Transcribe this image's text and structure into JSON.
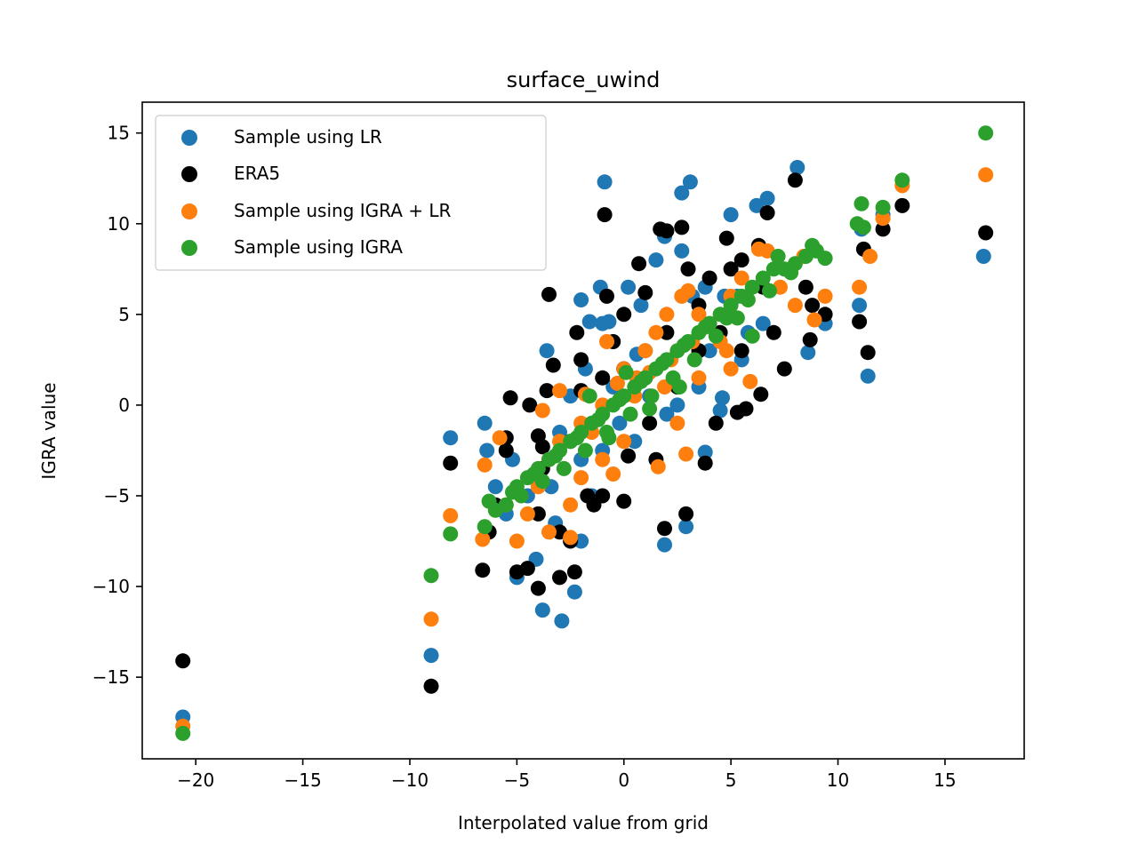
{
  "chart_data": {
    "type": "scatter",
    "title": "surface_uwind",
    "xlabel": "Interpolated value from grid",
    "ylabel": "IGRA value",
    "xlim": [
      -22.5,
      18.7
    ],
    "ylim": [
      -19.5,
      16.7
    ],
    "xticks": [
      -20,
      -15,
      -10,
      -5,
      0,
      5,
      10,
      15
    ],
    "yticks": [
      -15,
      -10,
      -5,
      0,
      5,
      10,
      15
    ],
    "xtick_labels": [
      "−20",
      "−15",
      "−10",
      "−5",
      "0",
      "5",
      "10",
      "15"
    ],
    "ytick_labels": [
      "−15",
      "−10",
      "−5",
      "0",
      "5",
      "10",
      "15"
    ],
    "legend_position": "upper-left",
    "series": [
      {
        "name": "Sample using LR",
        "color": "#1f77b4",
        "points": [
          [
            -20.6,
            -17.2
          ],
          [
            -9.0,
            -13.8
          ],
          [
            -8.1,
            -1.8
          ],
          [
            -6.5,
            -1.0
          ],
          [
            -6.4,
            -2.5
          ],
          [
            -5.0,
            -9.5
          ],
          [
            -4.1,
            -8.5
          ],
          [
            -3.8,
            -11.3
          ],
          [
            -2.9,
            -11.9
          ],
          [
            -2.3,
            -10.3
          ],
          [
            -3.6,
            3.0
          ],
          [
            -3.4,
            -4.5
          ],
          [
            -2.0,
            -7.5
          ],
          [
            -1.5,
            -5.0
          ],
          [
            -1.0,
            -2.5
          ],
          [
            -3.0,
            -1.5
          ],
          [
            -2.5,
            0.5
          ],
          [
            -1.8,
            2.0
          ],
          [
            -1.0,
            4.5
          ],
          [
            -0.9,
            12.3
          ],
          [
            -1.1,
            6.5
          ],
          [
            0.2,
            6.5
          ],
          [
            0.8,
            5.5
          ],
          [
            1.5,
            8.0
          ],
          [
            1.9,
            9.3
          ],
          [
            2.7,
            8.5
          ],
          [
            2.7,
            11.7
          ],
          [
            3.1,
            12.3
          ],
          [
            3.2,
            6.0
          ],
          [
            3.8,
            6.5
          ],
          [
            4.7,
            6.0
          ],
          [
            5.0,
            10.5
          ],
          [
            5.3,
            6.0
          ],
          [
            6.2,
            11.0
          ],
          [
            6.7,
            11.4
          ],
          [
            8.1,
            13.1
          ],
          [
            8.6,
            2.9
          ],
          [
            9.4,
            4.5
          ],
          [
            11.0,
            5.5
          ],
          [
            11.1,
            9.7
          ],
          [
            11.4,
            1.6
          ],
          [
            12.1,
            10.5
          ],
          [
            16.8,
            8.2
          ],
          [
            4.5,
            -0.3
          ],
          [
            3.8,
            -2.6
          ],
          [
            1.9,
            -7.7
          ],
          [
            2.9,
            -6.7
          ],
          [
            2.0,
            -0.5
          ],
          [
            0.5,
            -2.0
          ],
          [
            -0.5,
            1.0
          ],
          [
            1.0,
            3.0
          ],
          [
            0.0,
            2.0
          ],
          [
            -2.0,
            -3.0
          ],
          [
            -4.5,
            -5.0
          ],
          [
            -5.5,
            -6.0
          ],
          [
            2.5,
            0.0
          ],
          [
            3.5,
            1.0
          ],
          [
            4.0,
            3.0
          ],
          [
            5.8,
            4.0
          ],
          [
            6.5,
            4.5
          ],
          [
            5.5,
            2.5
          ],
          [
            -0.2,
            -1.0
          ],
          [
            1.2,
            0.5
          ],
          [
            -3.2,
            -6.5
          ],
          [
            -2.0,
            5.8
          ],
          [
            -1.6,
            4.6
          ],
          [
            -0.7,
            4.6
          ],
          [
            0.6,
            2.8
          ],
          [
            4.6,
            0.4
          ],
          [
            -6.0,
            -4.5
          ],
          [
            -5.2,
            -3.0
          ]
        ]
      },
      {
        "name": "ERA5",
        "color": "#000000",
        "points": [
          [
            -20.6,
            -14.1
          ],
          [
            -9.0,
            -15.5
          ],
          [
            -8.1,
            -3.2
          ],
          [
            -6.6,
            -9.1
          ],
          [
            -6.3,
            -7.0
          ],
          [
            -5.0,
            -9.2
          ],
          [
            -4.5,
            -9.0
          ],
          [
            -4.0,
            -10.1
          ],
          [
            -3.0,
            -9.5
          ],
          [
            -2.3,
            -9.2
          ],
          [
            -3.5,
            6.1
          ],
          [
            -3.3,
            2.2
          ],
          [
            -2.2,
            4.0
          ],
          [
            -2.0,
            2.5
          ],
          [
            -0.9,
            10.5
          ],
          [
            -0.8,
            6.0
          ],
          [
            0.0,
            5.0
          ],
          [
            0.7,
            7.8
          ],
          [
            1.0,
            6.2
          ],
          [
            1.7,
            9.7
          ],
          [
            2.0,
            9.6
          ],
          [
            2.7,
            9.8
          ],
          [
            3.0,
            7.5
          ],
          [
            3.5,
            5.5
          ],
          [
            4.0,
            7.0
          ],
          [
            4.8,
            9.2
          ],
          [
            5.0,
            7.5
          ],
          [
            5.5,
            8.0
          ],
          [
            6.3,
            8.8
          ],
          [
            6.5,
            6.5
          ],
          [
            6.7,
            10.6
          ],
          [
            7.0,
            4.0
          ],
          [
            8.0,
            12.4
          ],
          [
            8.5,
            6.5
          ],
          [
            8.7,
            3.6
          ],
          [
            9.4,
            5.0
          ],
          [
            11.0,
            4.6
          ],
          [
            11.2,
            8.6
          ],
          [
            11.4,
            2.9
          ],
          [
            12.1,
            9.7
          ],
          [
            13.0,
            11.0
          ],
          [
            16.9,
            9.5
          ],
          [
            -3.0,
            -7.0
          ],
          [
            -1.4,
            -5.5
          ],
          [
            -1.0,
            -5.0
          ],
          [
            0.0,
            -5.3
          ],
          [
            1.5,
            -3.0
          ],
          [
            1.9,
            -6.8
          ],
          [
            2.9,
            -6.0
          ],
          [
            3.8,
            -3.2
          ],
          [
            4.3,
            -1.0
          ],
          [
            5.3,
            -0.4
          ],
          [
            5.7,
            -0.2
          ],
          [
            6.4,
            0.6
          ],
          [
            -5.5,
            -1.8
          ],
          [
            -5.3,
            0.4
          ],
          [
            -4.4,
            0.0
          ],
          [
            -4.0,
            -1.7
          ],
          [
            -3.6,
            0.8
          ],
          [
            -2.0,
            0.8
          ],
          [
            -1.0,
            1.5
          ],
          [
            0.0,
            2.0
          ],
          [
            1.0,
            1.5
          ],
          [
            2.0,
            4.0
          ],
          [
            -4.0,
            -6.0
          ],
          [
            -5.5,
            -2.5
          ],
          [
            -6.0,
            -5.5
          ],
          [
            -3.8,
            -3.5
          ],
          [
            -2.5,
            -2.0
          ],
          [
            -1.7,
            -5.0
          ],
          [
            0.2,
            -2.8
          ],
          [
            1.2,
            -1.0
          ],
          [
            2.5,
            1.0
          ],
          [
            3.5,
            3.0
          ],
          [
            4.5,
            4.0
          ],
          [
            5.5,
            3.0
          ],
          [
            7.5,
            2.0
          ],
          [
            8.8,
            5.5
          ],
          [
            -2.5,
            -7.5
          ],
          [
            -3.8,
            -2.3
          ],
          [
            -0.5,
            3.5
          ]
        ]
      },
      {
        "name": "Sample using IGRA + LR",
        "color": "#ff7f0e",
        "points": [
          [
            -20.6,
            -17.7
          ],
          [
            -9.0,
            -11.8
          ],
          [
            -8.1,
            -6.1
          ],
          [
            -6.6,
            -7.4
          ],
          [
            -6.5,
            -3.3
          ],
          [
            -5.8,
            -1.8
          ],
          [
            -5.0,
            -7.5
          ],
          [
            -4.5,
            -6.0
          ],
          [
            -3.5,
            -7.0
          ],
          [
            -2.5,
            -7.3
          ],
          [
            -2.0,
            -4.0
          ],
          [
            -1.5,
            -1.5
          ],
          [
            -1.0,
            -3.0
          ],
          [
            -0.8,
            3.5
          ],
          [
            0.0,
            2.0
          ],
          [
            0.6,
            1.5
          ],
          [
            1.0,
            3.0
          ],
          [
            1.5,
            4.0
          ],
          [
            1.6,
            -3.4
          ],
          [
            2.0,
            5.0
          ],
          [
            2.7,
            6.0
          ],
          [
            2.9,
            -2.7
          ],
          [
            3.0,
            6.3
          ],
          [
            3.5,
            5.0
          ],
          [
            4.0,
            4.5
          ],
          [
            4.8,
            3.0
          ],
          [
            5.0,
            2.0
          ],
          [
            5.5,
            7.0
          ],
          [
            5.9,
            1.3
          ],
          [
            6.3,
            8.6
          ],
          [
            6.7,
            8.5
          ],
          [
            7.3,
            6.5
          ],
          [
            8.0,
            5.5
          ],
          [
            8.4,
            8.2
          ],
          [
            8.9,
            4.7
          ],
          [
            9.4,
            6.0
          ],
          [
            11.0,
            6.5
          ],
          [
            11.5,
            8.2
          ],
          [
            12.1,
            10.3
          ],
          [
            13.0,
            12.1
          ],
          [
            16.9,
            12.7
          ],
          [
            -4.0,
            -4.5
          ],
          [
            -3.5,
            -3.0
          ],
          [
            -3.0,
            -2.0
          ],
          [
            -2.0,
            -1.0
          ],
          [
            -1.0,
            0.0
          ],
          [
            0.5,
            0.5
          ],
          [
            1.2,
            1.8
          ],
          [
            2.2,
            2.5
          ],
          [
            2.5,
            -1.0
          ],
          [
            3.5,
            1.5
          ],
          [
            4.5,
            3.5
          ],
          [
            5.0,
            6.0
          ],
          [
            0.0,
            -2.0
          ],
          [
            -0.5,
            -3.8
          ],
          [
            -2.5,
            -5.5
          ],
          [
            -4.2,
            -4.0
          ],
          [
            -5.5,
            -5.5
          ],
          [
            -3.8,
            -0.3
          ],
          [
            -3.0,
            0.8
          ],
          [
            -1.8,
            0.6
          ],
          [
            -0.3,
            1.2
          ],
          [
            1.9,
            1.0
          ],
          [
            3.2,
            3.5
          ]
        ]
      },
      {
        "name": "Sample using IGRA",
        "color": "#2ca02c",
        "points": [
          [
            -20.6,
            -18.1
          ],
          [
            -9.0,
            -9.4
          ],
          [
            -8.1,
            -7.1
          ],
          [
            -6.5,
            -6.7
          ],
          [
            -6.3,
            -5.3
          ],
          [
            -5.5,
            -5.5
          ],
          [
            -5.0,
            -4.5
          ],
          [
            -4.5,
            -4.0
          ],
          [
            -4.0,
            -3.5
          ],
          [
            -3.5,
            -3.0
          ],
          [
            -3.0,
            -2.5
          ],
          [
            -2.5,
            -2.0
          ],
          [
            -2.0,
            -1.5
          ],
          [
            -1.5,
            -1.0
          ],
          [
            -1.0,
            -0.5
          ],
          [
            -0.5,
            0.0
          ],
          [
            0.0,
            0.5
          ],
          [
            0.5,
            1.0
          ],
          [
            1.0,
            1.5
          ],
          [
            1.5,
            2.0
          ],
          [
            2.0,
            2.5
          ],
          [
            2.5,
            3.0
          ],
          [
            3.0,
            3.5
          ],
          [
            3.5,
            4.0
          ],
          [
            4.0,
            4.5
          ],
          [
            4.5,
            5.0
          ],
          [
            5.0,
            5.5
          ],
          [
            5.5,
            6.0
          ],
          [
            6.0,
            6.5
          ],
          [
            6.5,
            7.0
          ],
          [
            7.0,
            7.5
          ],
          [
            7.5,
            7.5
          ],
          [
            8.0,
            7.8
          ],
          [
            8.5,
            8.2
          ],
          [
            9.0,
            8.5
          ],
          [
            9.4,
            8.1
          ],
          [
            10.9,
            10.0
          ],
          [
            11.1,
            11.1
          ],
          [
            11.2,
            9.8
          ],
          [
            12.1,
            10.9
          ],
          [
            13.0,
            12.4
          ],
          [
            16.9,
            15.0
          ],
          [
            -4.8,
            -5.0
          ],
          [
            -3.8,
            -4.2
          ],
          [
            -2.8,
            -3.5
          ],
          [
            -1.8,
            -2.5
          ],
          [
            -0.8,
            -1.5
          ],
          [
            0.3,
            -0.5
          ],
          [
            1.3,
            0.5
          ],
          [
            2.3,
            1.5
          ],
          [
            3.3,
            2.5
          ],
          [
            4.3,
            3.8
          ],
          [
            5.3,
            4.8
          ],
          [
            6.0,
            3.8
          ],
          [
            7.2,
            8.2
          ],
          [
            -6.0,
            -5.8
          ],
          [
            -3.2,
            -2.8
          ],
          [
            -2.2,
            -1.8
          ],
          [
            -1.2,
            -0.8
          ],
          [
            -0.2,
            0.3
          ],
          [
            0.8,
            1.3
          ],
          [
            1.8,
            2.3
          ],
          [
            2.8,
            3.3
          ],
          [
            3.8,
            4.3
          ],
          [
            4.8,
            4.8
          ],
          [
            5.8,
            5.8
          ],
          [
            6.8,
            6.3
          ],
          [
            7.8,
            7.3
          ],
          [
            8.8,
            8.8
          ],
          [
            -5.2,
            -4.8
          ],
          [
            -4.2,
            -3.8
          ],
          [
            1.2,
            -0.2
          ],
          [
            -0.7,
            -1.8
          ],
          [
            2.6,
            1.0
          ],
          [
            -1.6,
            0.5
          ],
          [
            0.1,
            1.8
          ]
        ]
      }
    ]
  }
}
